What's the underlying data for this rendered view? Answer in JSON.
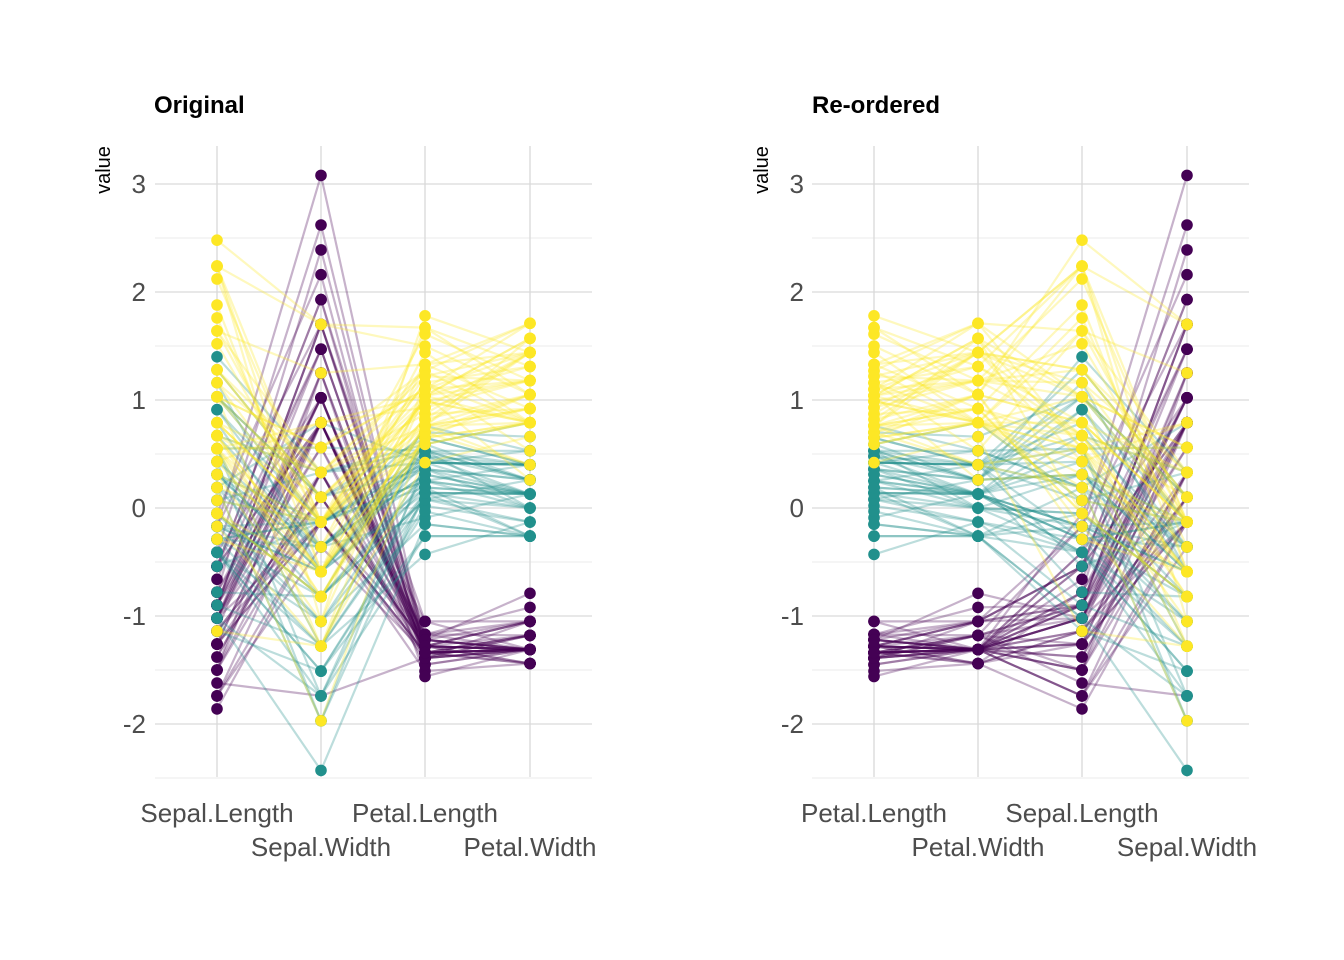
{
  "chart_data": [
    {
      "type": "parallel-coordinates",
      "title": "Original",
      "ylabel": "value",
      "axes": [
        "Sepal.Length",
        "Sepal.Width",
        "Petal.Length",
        "Petal.Width"
      ],
      "yticks": [
        3,
        2,
        1,
        0,
        -1,
        -2
      ],
      "ylim": [
        -2.6,
        3.3
      ],
      "grid": true
    },
    {
      "type": "parallel-coordinates",
      "title": "Re-ordered",
      "ylabel": "value",
      "axes": [
        "Petal.Length",
        "Petal.Width",
        "Sepal.Length",
        "Sepal.Width"
      ],
      "yticks": [
        3,
        2,
        1,
        0,
        -1,
        -2
      ],
      "ylim": [
        -2.6,
        3.3
      ],
      "grid": true
    }
  ],
  "variables": [
    "Sepal.Length",
    "Sepal.Width",
    "Petal.Length",
    "Petal.Width"
  ],
  "groups": [
    {
      "color": "#440154",
      "rows": [
        [
          -0.9,
          1.02,
          -1.34,
          -1.31
        ],
        [
          -1.14,
          -0.13,
          -1.34,
          -1.31
        ],
        [
          -1.38,
          0.33,
          -1.39,
          -1.31
        ],
        [
          -1.5,
          0.1,
          -1.28,
          -1.31
        ],
        [
          -1.02,
          1.25,
          -1.34,
          -1.31
        ],
        [
          -0.54,
          1.93,
          -1.17,
          -1.05
        ],
        [
          -1.5,
          0.79,
          -1.34,
          -1.18
        ],
        [
          -1.02,
          0.79,
          -1.28,
          -1.31
        ],
        [
          -1.74,
          -0.36,
          -1.34,
          -1.31
        ],
        [
          -1.14,
          0.1,
          -1.28,
          -1.44
        ],
        [
          -0.54,
          1.47,
          -1.28,
          -1.31
        ],
        [
          -1.26,
          0.79,
          -1.22,
          -1.31
        ],
        [
          -1.26,
          -0.13,
          -1.34,
          -1.44
        ],
        [
          -1.86,
          -0.13,
          -1.51,
          -1.44
        ],
        [
          -0.05,
          2.16,
          -1.45,
          -1.31
        ],
        [
          -0.17,
          3.08,
          -1.28,
          -1.05
        ],
        [
          -0.54,
          1.93,
          -1.39,
          -1.05
        ],
        [
          -0.9,
          1.02,
          -1.34,
          -1.18
        ],
        [
          -0.17,
          1.7,
          -1.17,
          -1.18
        ],
        [
          -0.9,
          1.7,
          -1.28,
          -1.18
        ],
        [
          -0.54,
          0.79,
          -1.17,
          -1.31
        ],
        [
          -0.9,
          1.47,
          -1.28,
          -1.05
        ],
        [
          -1.5,
          1.25,
          -1.56,
          -1.31
        ],
        [
          -0.9,
          0.56,
          -1.17,
          -0.92
        ],
        [
          -1.26,
          0.79,
          -1.05,
          -1.31
        ],
        [
          -1.02,
          -0.13,
          -1.22,
          -1.31
        ],
        [
          -1.02,
          0.79,
          -1.22,
          -1.05
        ],
        [
          -0.78,
          1.02,
          -1.28,
          -1.31
        ],
        [
          -0.78,
          0.79,
          -1.34,
          -1.31
        ],
        [
          -1.38,
          0.33,
          -1.22,
          -1.31
        ],
        [
          -1.26,
          0.1,
          -1.22,
          -1.31
        ],
        [
          -0.54,
          0.79,
          -1.28,
          -1.05
        ],
        [
          -0.78,
          2.39,
          -1.28,
          -1.44
        ],
        [
          -0.41,
          2.62,
          -1.34,
          -1.31
        ],
        [
          -1.14,
          0.1,
          -1.28,
          -1.31
        ],
        [
          -1.02,
          0.33,
          -1.45,
          -1.31
        ],
        [
          -0.41,
          1.02,
          -1.39,
          -1.31
        ],
        [
          -1.14,
          1.25,
          -1.34,
          -1.44
        ],
        [
          -1.74,
          -0.13,
          -1.39,
          -1.31
        ],
        [
          -0.9,
          0.79,
          -1.28,
          -1.31
        ],
        [
          -1.02,
          1.02,
          -1.39,
          -1.18
        ],
        [
          -1.62,
          -1.74,
          -1.39,
          -1.18
        ],
        [
          -1.74,
          0.33,
          -1.39,
          -1.31
        ],
        [
          -1.02,
          1.02,
          -1.22,
          -0.79
        ],
        [
          -0.9,
          1.7,
          -1.05,
          -1.05
        ],
        [
          -1.26,
          -0.13,
          -1.34,
          -1.18
        ],
        [
          -0.9,
          1.7,
          -1.22,
          -1.31
        ],
        [
          -1.5,
          0.33,
          -1.34,
          -1.31
        ],
        [
          -0.66,
          1.47,
          -1.28,
          -1.31
        ],
        [
          -1.02,
          0.56,
          -1.34,
          -1.31
        ]
      ]
    },
    {
      "color": "#21908C",
      "rows": [
        [
          1.4,
          0.33,
          0.53,
          0.26
        ],
        [
          0.67,
          0.33,
          0.42,
          0.4
        ],
        [
          1.28,
          0.1,
          0.65,
          0.4
        ],
        [
          -0.41,
          -1.74,
          0.14,
          0.13
        ],
        [
          0.79,
          -0.59,
          0.48,
          0.4
        ],
        [
          -0.17,
          -0.59,
          0.42,
          0.13
        ],
        [
          0.55,
          0.56,
          0.53,
          0.53
        ],
        [
          -1.14,
          -1.51,
          -0.26,
          -0.26
        ],
        [
          0.91,
          -0.36,
          0.48,
          0.13
        ],
        [
          -0.78,
          -0.82,
          0.08,
          0.26
        ],
        [
          -1.02,
          -2.43,
          -0.15,
          -0.26
        ],
        [
          0.07,
          -0.13,
          0.25,
          0.4
        ],
        [
          0.19,
          -1.97,
          0.14,
          -0.26
        ],
        [
          0.31,
          -0.36,
          0.53,
          0.26
        ],
        [
          -0.29,
          -0.36,
          -0.09,
          0.13
        ],
        [
          1.03,
          0.1,
          0.36,
          0.26
        ],
        [
          -0.29,
          -0.13,
          0.42,
          0.4
        ],
        [
          -0.05,
          -0.82,
          0.19,
          -0.26
        ],
        [
          0.43,
          -1.97,
          0.42,
          0.4
        ],
        [
          -0.29,
          -1.28,
          0.08,
          -0.13
        ],
        [
          0.07,
          0.33,
          0.59,
          0.79
        ],
        [
          0.31,
          -0.59,
          0.14,
          0.13
        ],
        [
          0.55,
          -1.28,
          0.65,
          0.4
        ],
        [
          0.31,
          -0.59,
          0.53,
          0.0
        ],
        [
          0.67,
          -0.36,
          0.31,
          0.13
        ],
        [
          0.91,
          -0.13,
          0.36,
          0.26
        ],
        [
          1.16,
          -0.59,
          0.59,
          0.26
        ],
        [
          1.03,
          -0.13,
          0.7,
          0.66
        ],
        [
          0.19,
          -0.36,
          0.42,
          0.4
        ],
        [
          -0.17,
          -1.05,
          -0.15,
          -0.26
        ],
        [
          -0.41,
          -1.51,
          0.02,
          -0.13
        ],
        [
          -0.41,
          -1.51,
          -0.03,
          -0.26
        ],
        [
          -0.05,
          -0.82,
          0.08,
          0.0
        ],
        [
          0.19,
          -0.82,
          0.76,
          0.53
        ],
        [
          -0.54,
          -0.13,
          0.42,
          0.4
        ],
        [
          0.19,
          0.79,
          0.42,
          0.53
        ],
        [
          1.03,
          0.1,
          0.53,
          0.4
        ],
        [
          0.55,
          -1.74,
          0.36,
          0.13
        ],
        [
          -0.29,
          -0.13,
          0.19,
          0.13
        ],
        [
          -0.41,
          -1.28,
          0.14,
          0.13
        ],
        [
          -0.41,
          -1.05,
          0.36,
          0.0
        ],
        [
          0.31,
          -0.13,
          0.48,
          0.26
        ],
        [
          -0.05,
          -1.05,
          0.14,
          0.0
        ],
        [
          -1.02,
          -1.74,
          -0.26,
          -0.26
        ],
        [
          -0.29,
          -0.82,
          0.25,
          0.13
        ],
        [
          -0.17,
          -0.13,
          0.25,
          0.0
        ],
        [
          -0.17,
          -0.36,
          0.25,
          0.13
        ],
        [
          0.43,
          -0.36,
          0.31,
          0.13
        ],
        [
          -0.9,
          -1.28,
          -0.43,
          -0.13
        ],
        [
          -0.17,
          -0.59,
          0.19,
          0.13
        ]
      ]
    },
    {
      "color": "#FDE725",
      "rows": [
        [
          0.55,
          0.56,
          1.27,
          1.71
        ],
        [
          -0.05,
          -0.82,
          0.76,
          0.92
        ],
        [
          1.52,
          -0.13,
          1.22,
          1.18
        ],
        [
          0.55,
          -0.36,
          1.04,
          0.79
        ],
        [
          0.79,
          -0.13,
          1.16,
          1.31
        ],
        [
          2.12,
          -0.13,
          1.61,
          1.18
        ],
        [
          -1.14,
          -1.28,
          0.42,
          0.66
        ],
        [
          1.76,
          -0.36,
          1.44,
          0.79
        ],
        [
          1.03,
          -1.28,
          1.16,
          0.79
        ],
        [
          1.64,
          1.25,
          1.33,
          1.71
        ],
        [
          0.79,
          0.33,
          0.76,
          1.05
        ],
        [
          0.67,
          -0.82,
          0.87,
          0.92
        ],
        [
          1.16,
          -0.13,
          0.99,
          1.18
        ],
        [
          -0.17,
          -1.28,
          0.7,
          1.05
        ],
        [
          -0.05,
          -0.59,
          0.76,
          1.57
        ],
        [
          0.67,
          0.33,
          0.87,
          1.44
        ],
        [
          0.79,
          -0.13,
          0.99,
          0.79
        ],
        [
          2.24,
          1.7,
          1.67,
          1.31
        ],
        [
          2.24,
          -1.05,
          1.78,
          1.44
        ],
        [
          0.19,
          -1.97,
          0.7,
          0.4
        ],
        [
          1.28,
          0.33,
          1.1,
          1.44
        ],
        [
          -0.29,
          -0.59,
          0.65,
          1.05
        ],
        [
          2.24,
          -0.59,
          1.67,
          1.05
        ],
        [
          0.55,
          -0.82,
          0.65,
          0.79
        ],
        [
          1.03,
          0.56,
          1.1,
          1.18
        ],
        [
          1.64,
          0.33,
          1.27,
          0.79
        ],
        [
          0.43,
          -0.59,
          0.59,
          0.79
        ],
        [
          0.31,
          -0.13,
          0.65,
          0.79
        ],
        [
          0.67,
          -0.59,
          1.04,
          1.18
        ],
        [
          1.64,
          -0.13,
          1.16,
          0.53
        ],
        [
          1.88,
          -0.59,
          1.33,
          0.92
        ],
        [
          2.48,
          1.7,
          1.5,
          1.05
        ],
        [
          0.67,
          -0.59,
          1.04,
          1.31
        ],
        [
          0.55,
          -0.59,
          0.76,
          0.4
        ],
        [
          0.31,
          -1.05,
          1.04,
          0.26
        ],
        [
          2.24,
          -0.13,
          1.33,
          1.44
        ],
        [
          0.55,
          0.79,
          1.04,
          1.57
        ],
        [
          0.67,
          0.1,
          0.99,
          0.79
        ],
        [
          0.19,
          -0.13,
          0.59,
          0.79
        ],
        [
          1.28,
          0.1,
          0.93,
          1.18
        ],
        [
          1.03,
          0.1,
          1.04,
          1.57
        ],
        [
          1.28,
          0.1,
          0.76,
          1.44
        ],
        [
          -0.05,
          -0.82,
          0.76,
          0.92
        ],
        [
          1.16,
          0.33,
          1.22,
          1.44
        ],
        [
          1.03,
          0.56,
          1.1,
          1.71
        ],
        [
          1.03,
          -0.13,
          0.82,
          1.44
        ],
        [
          0.55,
          -1.28,
          0.7,
          0.92
        ],
        [
          0.79,
          -0.13,
          0.82,
          1.05
        ],
        [
          0.43,
          0.79,
          0.93,
          1.44
        ],
        [
          0.07,
          -0.13,
          0.76,
          0.79
        ]
      ]
    }
  ],
  "line_opacity": 0.3
}
